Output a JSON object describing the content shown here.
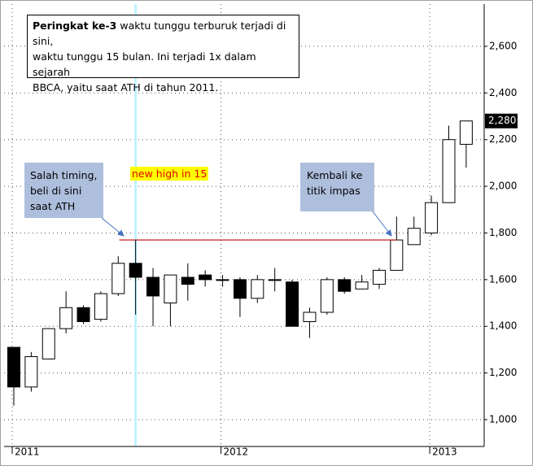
{
  "chart_data": {
    "type": "candlestick",
    "categories": [
      "2011",
      null,
      null,
      null,
      null,
      null,
      null,
      null,
      null,
      null,
      null,
      null,
      "2012",
      null,
      null,
      null,
      null,
      null,
      null,
      null,
      null,
      null,
      null,
      null,
      "2013",
      null,
      null
    ],
    "series": [
      {
        "name": "open",
        "values": [
          1310,
          1140,
          1260,
          1390,
          1480,
          1430,
          1540,
          1670,
          1610,
          1500,
          1610,
          1620,
          1600,
          1600,
          1520,
          1600,
          1590,
          1420,
          1460,
          1600,
          1560,
          1580,
          1640,
          1750,
          1800,
          1930,
          2180
        ]
      },
      {
        "name": "high",
        "values": [
          1310,
          1290,
          1390,
          1550,
          1490,
          1550,
          1700,
          1770,
          1650,
          1620,
          1670,
          1640,
          1620,
          1610,
          1620,
          1650,
          1600,
          1480,
          1610,
          1610,
          1620,
          1650,
          1870,
          1870,
          1960,
          2260,
          2280
        ]
      },
      {
        "name": "low",
        "values": [
          1060,
          1120,
          1260,
          1370,
          1410,
          1420,
          1530,
          1450,
          1400,
          1400,
          1510,
          1570,
          1570,
          1440,
          1500,
          1550,
          1400,
          1350,
          1450,
          1540,
          1560,
          1560,
          1640,
          1750,
          1790,
          1930,
          2080
        ]
      },
      {
        "name": "close",
        "values": [
          1140,
          1270,
          1390,
          1480,
          1420,
          1540,
          1670,
          1610,
          1530,
          1620,
          1580,
          1600,
          1600,
          1520,
          1600,
          1600,
          1400,
          1460,
          1600,
          1550,
          1590,
          1640,
          1770,
          1820,
          1930,
          2200,
          2280
        ]
      }
    ],
    "up_color": "#ffffff",
    "down_color": "#000000",
    "ylim": [
      885,
      2781
    ],
    "yticks": [
      {
        "value": 1000,
        "label": "1,000"
      },
      {
        "value": 1200,
        "label": "1,200"
      },
      {
        "value": 1400,
        "label": "1,400"
      },
      {
        "value": 1600,
        "label": "1,600"
      },
      {
        "value": 1800,
        "label": "1,800"
      },
      {
        "value": 2000,
        "label": "2,000"
      },
      {
        "value": 2200,
        "label": "2,200"
      },
      {
        "value": 2400,
        "label": "2,400"
      },
      {
        "value": 2600,
        "label": "2,600"
      }
    ],
    "grid": true,
    "last_label": {
      "value": 2280,
      "label": "2,280"
    },
    "reference_line": {
      "value": 1770,
      "color": "#c00000",
      "from": 7,
      "to": 22
    },
    "highlight_category": 7,
    "annotations": {
      "main": {
        "bold": "Peringkat ke-3",
        "lines": [
          "waktu tunggu terburuk terjadi di sini,",
          "waktu tunggu 15 bulan. Ini terjadi 1x dalam sejarah",
          "BBCA, yaitu saat ATH di tahun 2011."
        ]
      },
      "left": [
        "Salah timing,",
        "beli di sini",
        "saat ATH"
      ],
      "highlight": "new high in 15",
      "right": [
        "Kembali ke",
        "titik impas"
      ]
    }
  }
}
